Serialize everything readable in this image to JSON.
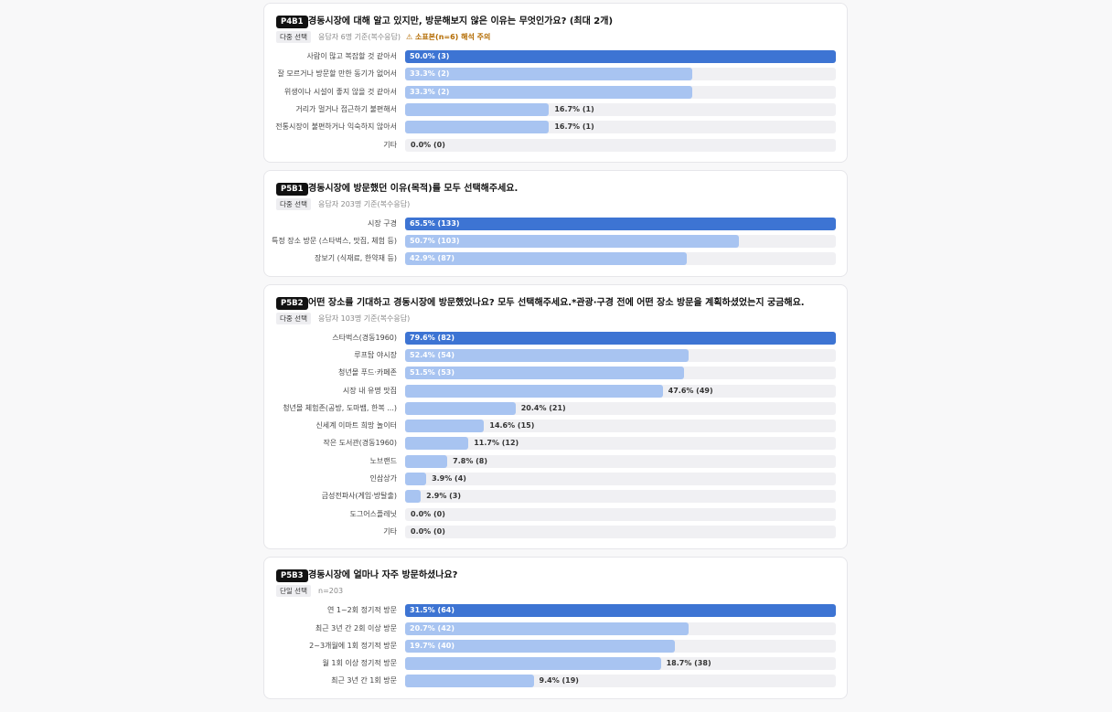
{
  "chart_data": [
    {
      "type": "bar",
      "code": "P4B1",
      "title": "경동시장에 대해 알고 있지만, 방문해보지 않은 이유는 무엇인가요? (최대 2개)",
      "tag": "다중 선택",
      "note": "응답자 6명 기준(복수응답)",
      "warning": "⚠ 소표본(n=6) 해석 주의",
      "categories": [
        "사람이 많고 복잡할 것 같아서",
        "잘 모르거나 방문할 만한 동기가 없어서",
        "위생이나 시설이 좋지 않을 것 같아서",
        "거리가 멀거나 접근하기 불편해서",
        "전통시장이 불편하거나 익숙하지 않아서",
        "기타"
      ],
      "values": [
        50.0,
        33.3,
        33.3,
        16.7,
        16.7,
        0.0
      ],
      "value_labels": [
        "50.0% (3)",
        "33.3% (2)",
        "33.3% (2)",
        "16.7% (1)",
        "16.7% (1)",
        "0.0% (0)"
      ],
      "xlim": [
        0,
        50.0
      ],
      "color": "#a8c4f1",
      "top_color": "#3d74d3"
    },
    {
      "type": "bar",
      "code": "P5B1",
      "title": "경동시장에 방문했던 이유(목적)를 모두 선택해주세요.",
      "tag": "다중 선택",
      "note": "응답자 203명 기준(복수응답)",
      "categories": [
        "시장 구경",
        "특정 장소 방문 (스타벅스, 맛집, 체험 등)",
        "장보기 (식재료, 한약재 등)"
      ],
      "values": [
        65.5,
        50.7,
        42.9
      ],
      "value_labels": [
        "65.5% (133)",
        "50.7% (103)",
        "42.9% (87)"
      ],
      "xlim": [
        0,
        65.5
      ],
      "color": "#a8c4f1",
      "top_color": "#3d74d3"
    },
    {
      "type": "bar",
      "code": "P5B2",
      "title": "어떤 장소를 기대하고 경동시장에 방문했었나요? 모두 선택해주세요.*관광·구경 전에 어떤 장소 방문을 계획하셨었는지 궁금해요.",
      "tag": "다중 선택",
      "note": "응답자 103명 기준(복수응답)",
      "categories": [
        "스타벅스(경동1960)",
        "루프탑 야시장",
        "청년몰 푸드·카페존",
        "시장 내 유명 맛집",
        "청년몰 체험존(공방, 도마뱀, 한복 ...)",
        "신세계 이마트 희망 놀이터",
        "작은 도서관(경동1960)",
        "노브랜드",
        "인삼상가",
        "금성전파사(게임·방탈출)",
        "도그어스플레닛",
        "기타"
      ],
      "values": [
        79.6,
        52.4,
        51.5,
        47.6,
        20.4,
        14.6,
        11.7,
        7.8,
        3.9,
        2.9,
        0.0,
        0.0
      ],
      "value_labels": [
        "79.6% (82)",
        "52.4% (54)",
        "51.5% (53)",
        "47.6% (49)",
        "20.4% (21)",
        "14.6% (15)",
        "11.7% (12)",
        "7.8% (8)",
        "3.9% (4)",
        "2.9% (3)",
        "0.0% (0)",
        "0.0% (0)"
      ],
      "xlim": [
        0,
        79.6
      ],
      "color": "#a8c4f1",
      "top_color": "#3d74d3"
    },
    {
      "type": "bar",
      "code": "P5B3",
      "title": "경동시장에 얼마나 자주 방문하셨나요?",
      "tag": "단일 선택",
      "note": "n=203",
      "categories": [
        "연 1~2회 정기적 방문",
        "최근 3년 간 2회 이상 방문",
        "2~3개월에 1회 정기적 방문",
        "월 1회 이상 정기적 방문",
        "최근 3년 간 1회 방문"
      ],
      "values": [
        31.5,
        20.7,
        19.7,
        18.7,
        9.4
      ],
      "value_labels": [
        "31.5% (64)",
        "20.7% (42)",
        "19.7% (40)",
        "18.7% (38)",
        "9.4% (19)"
      ],
      "xlim": [
        0,
        31.5
      ],
      "color": "#a8c4f1",
      "top_color": "#3d74d3"
    }
  ]
}
